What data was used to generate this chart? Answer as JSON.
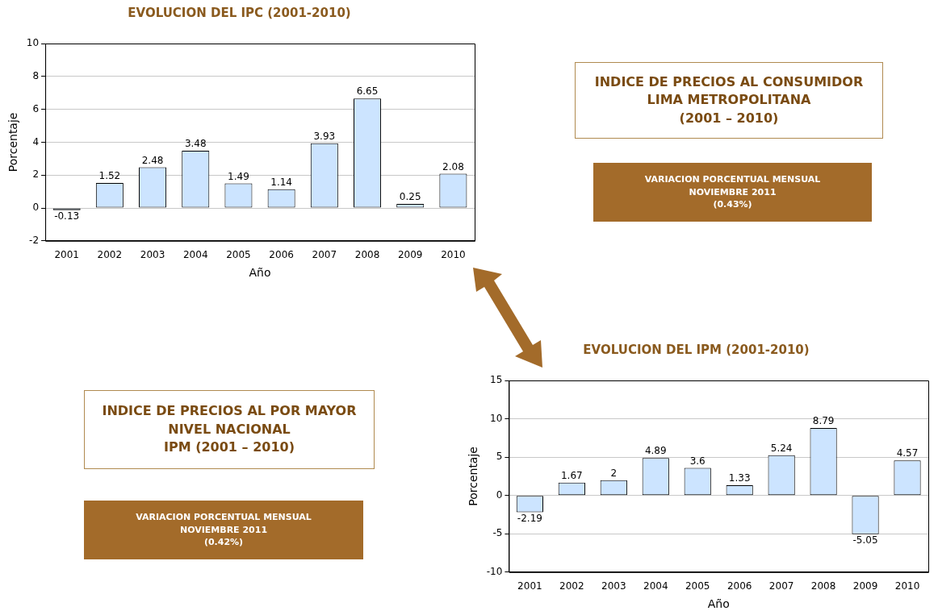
{
  "chart_data": [
    {
      "type": "bar",
      "title": "EVOLUCION DEL IPC (2001-2010)",
      "xlabel": "Año",
      "ylabel": "Porcentaje",
      "categories": [
        "2001",
        "2002",
        "2003",
        "2004",
        "2005",
        "2006",
        "2007",
        "2008",
        "2009",
        "2010"
      ],
      "values": [
        -0.13,
        1.52,
        2.48,
        3.48,
        1.49,
        1.14,
        3.93,
        6.65,
        0.25,
        2.08
      ],
      "color": "#cce4ff",
      "ylim": [
        -2,
        10
      ],
      "yticks": [
        -2,
        0,
        2,
        4,
        6,
        8,
        10
      ],
      "grid": "y",
      "legend": false,
      "data_labels": true
    },
    {
      "type": "other",
      "title": "INDICE DE PRECIOS AL CONSUMIDOR\nLIMA METROPOLITANA\n(2001 – 2010)",
      "annotations": [
        "VARIACION PORCENTUAL MENSUAL\nNOVIEMBRE 2011\n(0.43%)"
      ]
    },
    {
      "type": "other",
      "title": "INDICE DE PRECIOS AL POR MAYOR\nNIVEL NACIONAL\nIPM (2001 – 2010)",
      "annotations": [
        "VARIACION PORCENTUAL MENSUAL\nNOVIEMBRE 2011\n(0.42%)"
      ]
    },
    {
      "type": "bar",
      "title": "EVOLUCION DEL IPM (2001-2010)",
      "xlabel": "Año",
      "ylabel": "Porcentaje",
      "categories": [
        "2001",
        "2002",
        "2003",
        "2004",
        "2005",
        "2006",
        "2007",
        "2008",
        "2009",
        "2010"
      ],
      "values": [
        -2.19,
        1.67,
        2,
        4.89,
        3.6,
        1.33,
        5.24,
        8.79,
        -5.05,
        4.57
      ],
      "color": "#cce4ff",
      "ylim": [
        -10,
        15
      ],
      "yticks": [
        -10,
        -5,
        0,
        5,
        10,
        15
      ],
      "grid": "y",
      "legend": false,
      "data_labels": true
    }
  ]
}
